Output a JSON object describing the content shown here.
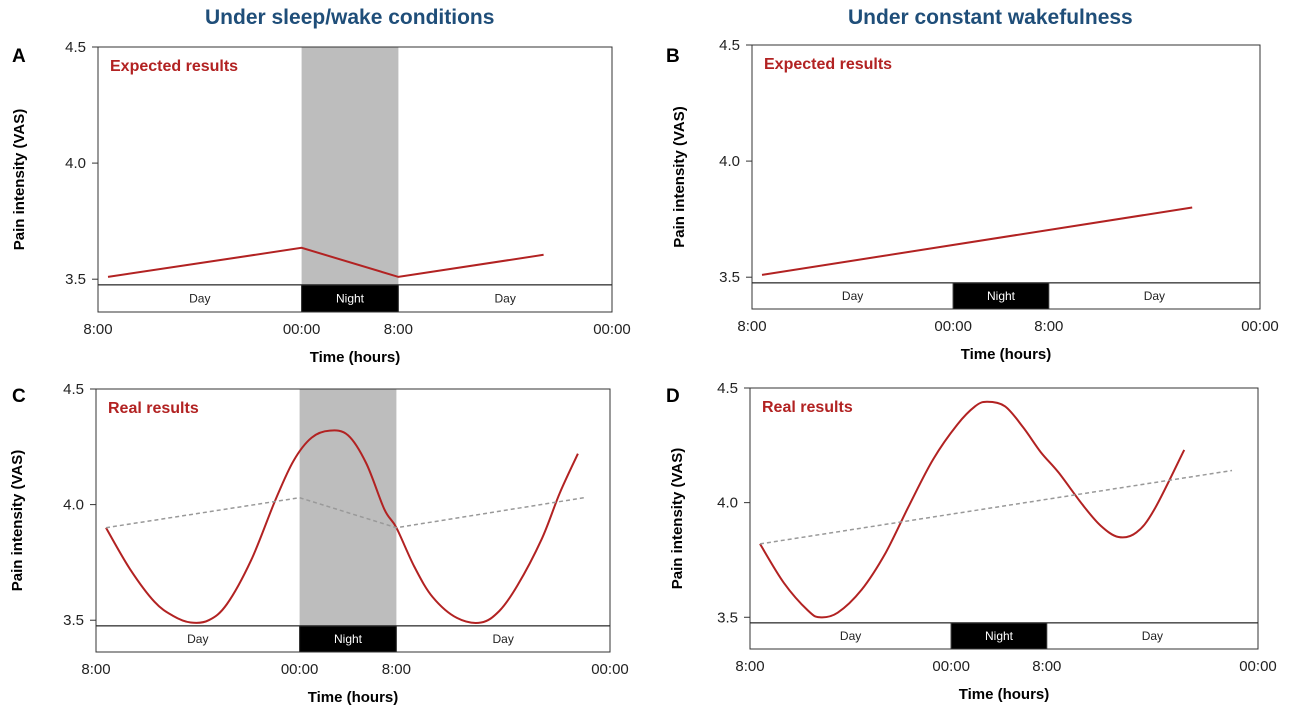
{
  "columns": {
    "left_title": "Under sleep/wake conditions",
    "right_title": "Under constant wakefulness"
  },
  "colors": {
    "accent_red": "#b22222",
    "title_blue": "#1f4e79",
    "night_shade": "#bdbdbd",
    "dashed_line": "#999999",
    "night_band": "#000000"
  },
  "chart_data": [
    {
      "panel": "A",
      "type": "line",
      "annotation": "Expected results",
      "ylabel": "Pain intensity (VAS)",
      "xlabel": "Time (hours)",
      "ylim": [
        3.475,
        4.5
      ],
      "yticks": [
        3.5,
        4.0,
        4.5
      ],
      "ytick_labels": [
        "3.5",
        "4.0",
        "4.5"
      ],
      "xlim": [
        0,
        40
      ],
      "xticks": [
        0,
        16,
        24,
        40
      ],
      "xtick_labels": [
        "8:00",
        "00:00",
        "8:00",
        "00:00"
      ],
      "night_shaded": true,
      "bands": [
        {
          "label": "Day",
          "start": 0,
          "end": 16
        },
        {
          "label": "Night",
          "start": 16,
          "end": 24
        },
        {
          "label": "Day",
          "start": 24,
          "end": 40
        }
      ],
      "series": [
        {
          "style": "solid",
          "color": "#b22222",
          "x": [
            0,
            16,
            24,
            36
          ],
          "y": [
            3.51,
            3.635,
            3.51,
            3.605
          ]
        }
      ]
    },
    {
      "panel": "B",
      "type": "line",
      "annotation": "Expected results",
      "ylabel": "Pain intensity (VAS)",
      "xlabel": "Time (hours)",
      "ylim": [
        3.475,
        4.5
      ],
      "yticks": [
        3.5,
        4.0,
        4.5
      ],
      "ytick_labels": [
        "3.5",
        "4.0",
        "4.5"
      ],
      "xlim": [
        0,
        40
      ],
      "xticks": [
        0,
        16,
        24,
        40
      ],
      "xtick_labels": [
        "8:00",
        "00:00",
        "8:00",
        "00:00"
      ],
      "night_shaded": false,
      "bands": [
        {
          "label": "Day",
          "start": 0,
          "end": 16
        },
        {
          "label": "Night",
          "start": 16,
          "end": 24
        },
        {
          "label": "Day",
          "start": 24,
          "end": 40
        }
      ],
      "series": [
        {
          "style": "solid",
          "color": "#b22222",
          "x": [
            0,
            36
          ],
          "y": [
            3.51,
            3.8
          ]
        }
      ]
    },
    {
      "panel": "C",
      "type": "line",
      "annotation": "Real results",
      "ylabel": "Pain intensity (VAS)",
      "xlabel": "Time (hours)",
      "ylim": [
        3.475,
        4.5
      ],
      "yticks": [
        3.5,
        4.0,
        4.5
      ],
      "ytick_labels": [
        "3.5",
        "4.0",
        "4.5"
      ],
      "xlim": [
        0,
        40
      ],
      "xticks": [
        0,
        16,
        24,
        40
      ],
      "xtick_labels": [
        "8:00",
        "00:00",
        "8:00",
        "00:00"
      ],
      "night_shaded": true,
      "bands": [
        {
          "label": "Day",
          "start": 0,
          "end": 16
        },
        {
          "label": "Night",
          "start": 16,
          "end": 24
        },
        {
          "label": "Day",
          "start": 24,
          "end": 40
        }
      ],
      "series": [
        {
          "style": "solid",
          "color": "#b22222",
          "x": [
            0,
            2,
            4,
            5.5,
            7,
            8.5,
            10,
            12,
            14,
            15.5,
            17,
            18.5,
            20,
            21.5,
            23,
            24,
            25.5,
            27,
            29,
            31,
            32.5,
            34,
            36,
            37.5,
            39
          ],
          "y": [
            3.9,
            3.72,
            3.58,
            3.52,
            3.49,
            3.5,
            3.57,
            3.76,
            4.02,
            4.19,
            4.29,
            4.32,
            4.3,
            4.18,
            3.98,
            3.9,
            3.73,
            3.6,
            3.51,
            3.49,
            3.54,
            3.65,
            3.85,
            4.05,
            4.22
          ]
        },
        {
          "style": "dashed",
          "color": "#999999",
          "x": [
            0,
            16,
            24,
            39.5
          ],
          "y": [
            3.9,
            4.03,
            3.9,
            4.03
          ]
        }
      ]
    },
    {
      "panel": "D",
      "type": "line",
      "annotation": "Real results",
      "ylabel": "Pain intensity (VAS)",
      "xlabel": "Time (hours)",
      "ylim": [
        3.475,
        4.5
      ],
      "yticks": [
        3.5,
        4.0,
        4.5
      ],
      "ytick_labels": [
        "3.5",
        "4.0",
        "4.5"
      ],
      "xlim": [
        0,
        40
      ],
      "xticks": [
        0,
        16,
        24,
        40
      ],
      "xtick_labels": [
        "8:00",
        "00:00",
        "8:00",
        "00:00"
      ],
      "night_shaded": false,
      "bands": [
        {
          "label": "Day",
          "start": 0,
          "end": 16
        },
        {
          "label": "Night",
          "start": 16,
          "end": 24
        },
        {
          "label": "Day",
          "start": 24,
          "end": 40
        }
      ],
      "series": [
        {
          "style": "solid",
          "color": "#b22222",
          "x": [
            0,
            2,
            4,
            5,
            6.5,
            8.5,
            10.5,
            12.5,
            14.5,
            16.5,
            18,
            19,
            20.5,
            22,
            23.5,
            25,
            27,
            28.5,
            30,
            31.5,
            33,
            35.5
          ],
          "y": [
            3.82,
            3.65,
            3.53,
            3.5,
            3.52,
            3.62,
            3.78,
            3.99,
            4.19,
            4.34,
            4.42,
            4.44,
            4.42,
            4.33,
            4.22,
            4.13,
            3.99,
            3.9,
            3.85,
            3.87,
            3.97,
            4.23
          ]
        },
        {
          "style": "dashed",
          "color": "#999999",
          "x": [
            0,
            39.5
          ],
          "y": [
            3.82,
            4.14
          ]
        }
      ]
    }
  ]
}
